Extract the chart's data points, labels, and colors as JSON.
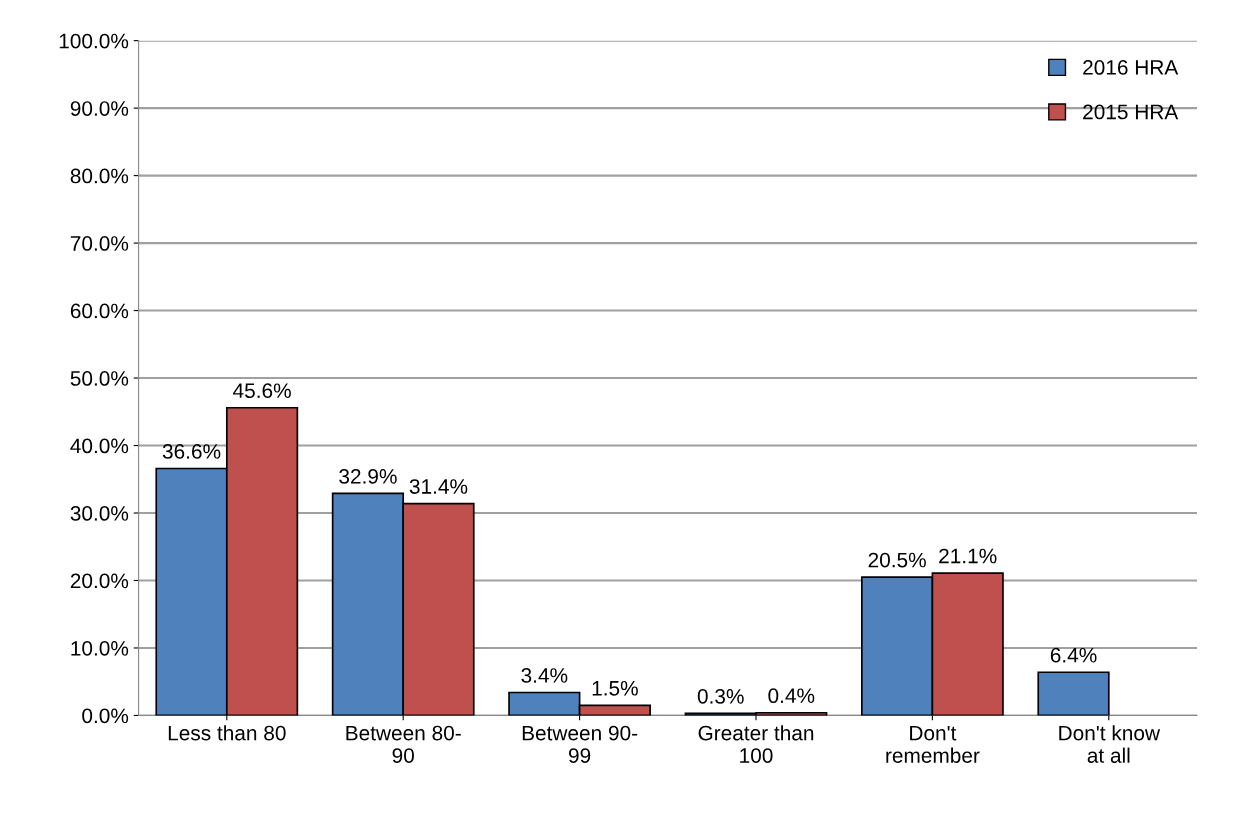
{
  "chart_data": {
    "type": "bar",
    "categories": [
      "Less than 80",
      "Between 80-\n90",
      "Between 90-\n99",
      "Greater than\n100",
      "Don't\nremember",
      "Don't know\nat all"
    ],
    "series": [
      {
        "name": "2016 HRA",
        "color": "#4f81bd",
        "values": [
          36.6,
          32.9,
          3.4,
          0.3,
          20.5,
          6.4
        ],
        "value_labels": [
          "36.6%",
          "32.9%",
          "3.4%",
          "0.3%",
          "20.5%",
          "6.4%"
        ]
      },
      {
        "name": "2015 HRA",
        "color": "#c0504d",
        "values": [
          45.6,
          31.4,
          1.5,
          0.4,
          21.1,
          null
        ],
        "value_labels": [
          "45.6%",
          "31.4%",
          "1.5%",
          "0.4%",
          "21.1%",
          null
        ]
      }
    ],
    "ylim": [
      0,
      100
    ],
    "yticks": [
      {
        "value": 0,
        "label": "0.0%"
      },
      {
        "value": 10,
        "label": "10.0%"
      },
      {
        "value": 20,
        "label": "20.0%"
      },
      {
        "value": 30,
        "label": "30.0%"
      },
      {
        "value": 40,
        "label": "40.0%"
      },
      {
        "value": 50,
        "label": "50.0%"
      },
      {
        "value": 60,
        "label": "60.0%"
      },
      {
        "value": 70,
        "label": "70.0%"
      },
      {
        "value": 80,
        "label": "80.0%"
      },
      {
        "value": 90,
        "label": "90.0%"
      },
      {
        "value": 100,
        "label": "100.0%"
      }
    ],
    "grid": "y",
    "legend": "top right"
  }
}
